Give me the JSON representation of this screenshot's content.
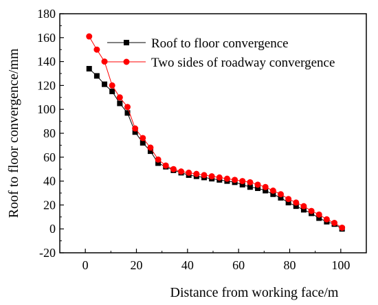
{
  "chart_data": {
    "type": "line",
    "title": "",
    "xlabel": "Distance from working face/m",
    "ylabel": "Roof to floor convergence/mm",
    "xlim": [
      -10,
      110
    ],
    "ylim": [
      -20,
      180
    ],
    "x_ticks": [
      0,
      20,
      40,
      60,
      80,
      100
    ],
    "y_ticks": [
      -20,
      0,
      20,
      40,
      60,
      80,
      100,
      120,
      140,
      160,
      180
    ],
    "grid": false,
    "legend_position": "top-right",
    "series": [
      {
        "name": "Roof to floor convergence",
        "color": "#000000",
        "marker": "square",
        "points": [
          [
            1.5,
            134
          ],
          [
            4.5,
            128
          ],
          [
            7.5,
            121
          ],
          [
            10.5,
            115
          ],
          [
            13.5,
            105
          ],
          [
            16.5,
            97
          ],
          [
            19.5,
            81
          ],
          [
            22.5,
            72
          ],
          [
            25.5,
            65
          ],
          [
            28.5,
            55
          ],
          [
            31.5,
            52
          ],
          [
            34.5,
            49
          ],
          [
            37.5,
            47
          ],
          [
            40.5,
            45
          ],
          [
            43.5,
            44
          ],
          [
            46.5,
            43
          ],
          [
            49.5,
            42
          ],
          [
            52.5,
            41
          ],
          [
            55.5,
            40
          ],
          [
            58.5,
            39
          ],
          [
            61.5,
            37
          ],
          [
            64.5,
            35
          ],
          [
            67.5,
            34
          ],
          [
            70.5,
            32
          ],
          [
            73.5,
            29
          ],
          [
            76.5,
            26
          ],
          [
            79.5,
            22
          ],
          [
            82.5,
            19
          ],
          [
            85.5,
            16
          ],
          [
            88.5,
            13
          ],
          [
            91.5,
            9
          ],
          [
            94.5,
            6
          ],
          [
            97.5,
            4
          ],
          [
            100.5,
            0
          ]
        ]
      },
      {
        "name": "Two sides of roadway convergence",
        "color": "#ff0000",
        "marker": "circle",
        "points": [
          [
            1.5,
            161
          ],
          [
            4.5,
            150
          ],
          [
            7.5,
            140
          ],
          [
            10.5,
            120
          ],
          [
            13.5,
            110
          ],
          [
            16.5,
            102
          ],
          [
            19.5,
            84
          ],
          [
            22.5,
            76
          ],
          [
            25.5,
            68
          ],
          [
            28.5,
            58
          ],
          [
            31.5,
            53
          ],
          [
            34.5,
            50
          ],
          [
            37.5,
            48
          ],
          [
            40.5,
            47
          ],
          [
            43.5,
            46
          ],
          [
            46.5,
            45
          ],
          [
            49.5,
            44
          ],
          [
            52.5,
            43
          ],
          [
            55.5,
            42
          ],
          [
            58.5,
            41
          ],
          [
            61.5,
            40
          ],
          [
            64.5,
            39
          ],
          [
            67.5,
            37
          ],
          [
            70.5,
            35
          ],
          [
            73.5,
            32
          ],
          [
            76.5,
            29
          ],
          [
            79.5,
            25
          ],
          [
            82.5,
            22
          ],
          [
            85.5,
            19
          ],
          [
            88.5,
            15
          ],
          [
            91.5,
            12
          ],
          [
            94.5,
            8
          ],
          [
            97.5,
            5
          ],
          [
            100.5,
            1
          ]
        ]
      }
    ]
  }
}
